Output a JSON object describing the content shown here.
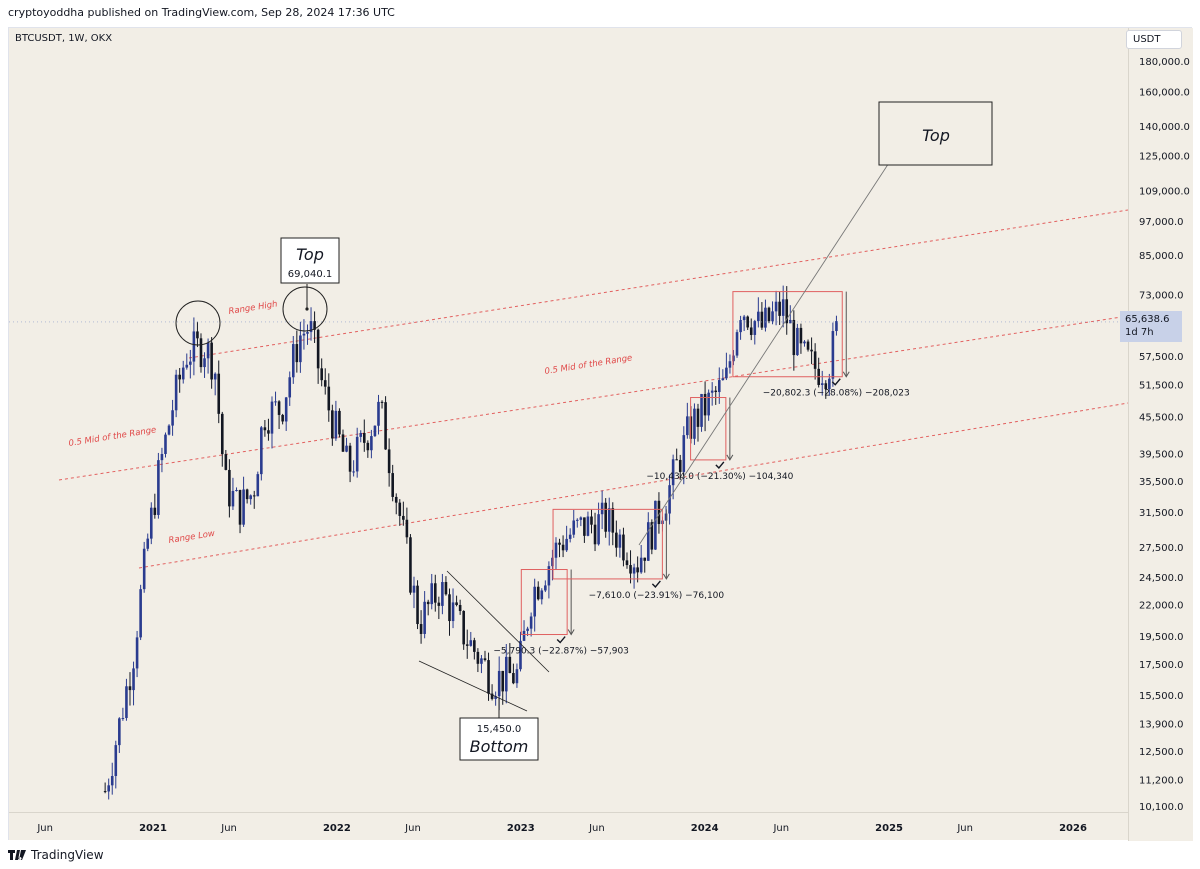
{
  "header": {
    "publisher_line": "cryptoyoddha published on TradingView.com, Sep 28, 2024 17:36 UTC"
  },
  "symbol_line": "BTCUSDT, 1W, OKX",
  "currency": "USDT",
  "last_price": {
    "value": "65,638.6",
    "countdown": "1d 7h"
  },
  "footer": {
    "brand": "TradingView"
  },
  "colors": {
    "up": "#2a3b8f",
    "down": "#131722",
    "range_lines": "#e04848",
    "box_border": "#e06060",
    "background": "#f2eee6"
  },
  "chart_data": {
    "type": "candlestick",
    "timeframe": "1W",
    "y_scale": "log",
    "y_ticks": [
      "180,000.0",
      "160,000.0",
      "140,000.0",
      "125,000.0",
      "109,000.0",
      "97,000.0",
      "85,000.0",
      "73,000.0",
      "57,500.0",
      "51,500.0",
      "45,500.0",
      "39,500.0",
      "35,500.0",
      "31,500.0",
      "27,500.0",
      "24,500.0",
      "22,000.0",
      "19,500.0",
      "17,500.0",
      "15,500.0",
      "13,900.0",
      "12,500.0",
      "11,200.0",
      "10,100.0"
    ],
    "y_tick_values": [
      180000,
      160000,
      140000,
      125000,
      109000,
      97000,
      85000,
      73000,
      57500,
      51500,
      45500,
      39500,
      35500,
      31500,
      27500,
      24500,
      22000,
      19500,
      17500,
      15500,
      13900,
      12500,
      11200,
      10100
    ],
    "x_ticks": [
      {
        "label": "Jun",
        "date": "2020-06-01"
      },
      {
        "label": "2021",
        "date": "2021-01-01"
      },
      {
        "label": "Jun",
        "date": "2021-06-01"
      },
      {
        "label": "2022",
        "date": "2022-01-01"
      },
      {
        "label": "Jun",
        "date": "2022-06-01"
      },
      {
        "label": "2023",
        "date": "2023-01-01"
      },
      {
        "label": "Jun",
        "date": "2023-06-01"
      },
      {
        "label": "2024",
        "date": "2024-01-01"
      },
      {
        "label": "Jun",
        "date": "2024-06-01"
      },
      {
        "label": "2025",
        "date": "2025-01-01"
      },
      {
        "label": "Jun",
        "date": "2025-06-01"
      },
      {
        "label": "2026",
        "date": "2026-01-01"
      }
    ],
    "price_path": [
      {
        "date": "2020-09-28",
        "close": 10700
      },
      {
        "date": "2020-10-26",
        "close": 13800
      },
      {
        "date": "2020-11-23",
        "close": 18200
      },
      {
        "date": "2020-12-21",
        "close": 28000
      },
      {
        "date": "2021-01-11",
        "close": 36000
      },
      {
        "date": "2021-02-08",
        "close": 47000
      },
      {
        "date": "2021-03-08",
        "close": 58000
      },
      {
        "date": "2021-04-12",
        "close": 60000
      },
      {
        "date": "2021-05-03",
        "close": 56000
      },
      {
        "date": "2021-05-24",
        "close": 35000
      },
      {
        "date": "2021-06-21",
        "close": 32000
      },
      {
        "date": "2021-07-19",
        "close": 34000
      },
      {
        "date": "2021-08-09",
        "close": 46000
      },
      {
        "date": "2021-09-13",
        "close": 47000
      },
      {
        "date": "2021-10-18",
        "close": 62000
      },
      {
        "date": "2021-11-08",
        "close": 64500
      },
      {
        "date": "2021-12-06",
        "close": 50000
      },
      {
        "date": "2022-01-24",
        "close": 37000
      },
      {
        "date": "2022-03-28",
        "close": 47000
      },
      {
        "date": "2022-05-09",
        "close": 30000
      },
      {
        "date": "2022-06-13",
        "close": 20500
      },
      {
        "date": "2022-07-25",
        "close": 23500
      },
      {
        "date": "2022-09-12",
        "close": 19500
      },
      {
        "date": "2022-11-07",
        "close": 16500
      },
      {
        "date": "2022-12-26",
        "close": 16800
      },
      {
        "date": "2023-01-23",
        "close": 23000
      },
      {
        "date": "2023-03-20",
        "close": 28000
      },
      {
        "date": "2023-04-24",
        "close": 29500
      },
      {
        "date": "2023-06-19",
        "close": 30500
      },
      {
        "date": "2023-08-21",
        "close": 26000
      },
      {
        "date": "2023-10-23",
        "close": 34500
      },
      {
        "date": "2023-12-04",
        "close": 44000
      },
      {
        "date": "2024-02-12",
        "close": 52000
      },
      {
        "date": "2024-03-11",
        "close": 70000
      },
      {
        "date": "2024-04-22",
        "close": 64000
      },
      {
        "date": "2024-06-03",
        "close": 69500
      },
      {
        "date": "2024-07-08",
        "close": 58000
      },
      {
        "date": "2024-08-05",
        "close": 55000
      },
      {
        "date": "2024-09-02",
        "close": 55000
      },
      {
        "date": "2024-09-23",
        "close": 65638.6
      }
    ],
    "ranges": [
      {
        "from_date": "2023-01-02",
        "to_date": "2023-04-03",
        "high": 25200,
        "low": 19600,
        "text": "−5,790.3 (−22.87%) −57,903"
      },
      {
        "from_date": "2023-03-06",
        "to_date": "2023-10-09",
        "high": 31800,
        "low": 24300,
        "text": "−7,610.0 (−23.91%) −76,100"
      },
      {
        "from_date": "2023-12-04",
        "to_date": "2024-02-12",
        "high": 49000,
        "low": 38500,
        "text": "−10,434.0 (−21.30%) −104,340"
      },
      {
        "from_date": "2024-02-26",
        "to_date": "2024-09-30",
        "high": 73800,
        "low": 53100,
        "text": "−20,802.3 (−28.08%) −208,023"
      }
    ],
    "annotations": [
      {
        "text": "Range High"
      },
      {
        "text": "0.5 Mid of the Range"
      },
      {
        "text": "0.5 Mid of the Range"
      },
      {
        "text": "Range Low"
      },
      {
        "text": "Top",
        "value": "69,040.1"
      },
      {
        "text": "Bottom",
        "value": "15,450.0"
      },
      {
        "text": "Top"
      }
    ],
    "grid": false
  }
}
